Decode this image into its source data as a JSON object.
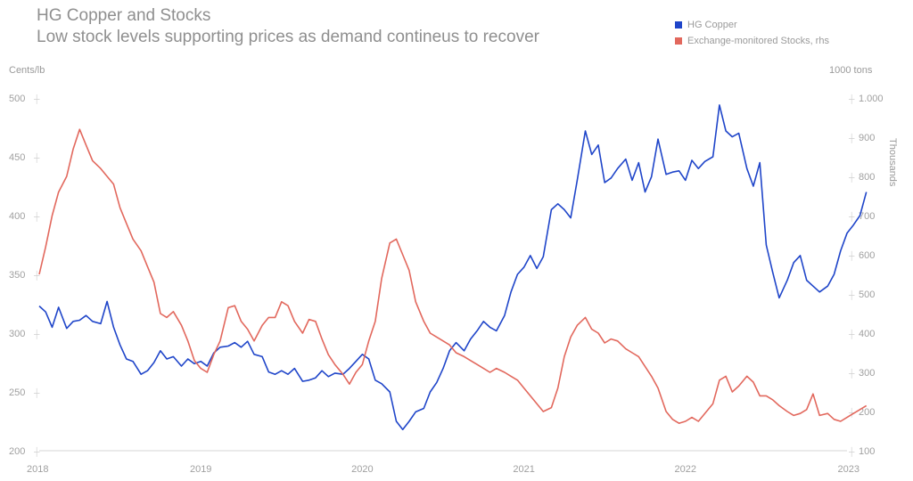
{
  "title": "HG Copper and Stocks",
  "subtitle": "Low stock levels supporting prices as demand contineus to recover",
  "left_unit": "Cents/lb",
  "right_unit": "1000 tons",
  "right_axis_label": "Thousands",
  "legend": [
    {
      "label": "HG Copper",
      "color": "#1f45c9"
    },
    {
      "label": "Exchange-monitored Stocks, rhs",
      "color": "#e2685d"
    }
  ],
  "chart_data": {
    "type": "line",
    "title": "HG Copper and Stocks",
    "subtitle": "Low stock levels supporting prices as demand contineus to recover",
    "x_ticks": [
      "2018",
      "2019",
      "2020",
      "2021",
      "2022",
      "2023"
    ],
    "xlim": [
      2018.0,
      2023.0
    ],
    "y_left": {
      "label": "Cents/lb",
      "ticks": [
        200,
        250,
        300,
        350,
        400,
        450,
        500
      ],
      "ylim": [
        200,
        500
      ]
    },
    "y_right": {
      "label": "1000 tons",
      "axis_title": "Thousands",
      "ticks": [
        "100",
        "200",
        "300",
        "400",
        "500",
        "600",
        "700",
        "800",
        "900",
        "1.000"
      ],
      "tick_values": [
        100,
        200,
        300,
        400,
        500,
        600,
        700,
        800,
        900,
        1000
      ],
      "ylim": [
        100,
        1000
      ]
    },
    "grid": false,
    "legend_position": "top-right",
    "series": [
      {
        "name": "HG Copper",
        "axis": "left",
        "color": "#1f45c9",
        "points": [
          [
            2018.0,
            323
          ],
          [
            2018.04,
            318
          ],
          [
            2018.08,
            305
          ],
          [
            2018.12,
            322
          ],
          [
            2018.17,
            304
          ],
          [
            2018.21,
            310
          ],
          [
            2018.25,
            311
          ],
          [
            2018.29,
            315
          ],
          [
            2018.33,
            310
          ],
          [
            2018.38,
            308
          ],
          [
            2018.42,
            327
          ],
          [
            2018.46,
            305
          ],
          [
            2018.5,
            290
          ],
          [
            2018.54,
            278
          ],
          [
            2018.58,
            276
          ],
          [
            2018.63,
            265
          ],
          [
            2018.67,
            268
          ],
          [
            2018.71,
            275
          ],
          [
            2018.75,
            285
          ],
          [
            2018.79,
            278
          ],
          [
            2018.83,
            280
          ],
          [
            2018.88,
            272
          ],
          [
            2018.92,
            278
          ],
          [
            2018.96,
            274
          ],
          [
            2019.0,
            276
          ],
          [
            2019.04,
            272
          ],
          [
            2019.08,
            283
          ],
          [
            2019.12,
            288
          ],
          [
            2019.17,
            289
          ],
          [
            2019.21,
            292
          ],
          [
            2019.25,
            288
          ],
          [
            2019.29,
            293
          ],
          [
            2019.33,
            282
          ],
          [
            2019.38,
            280
          ],
          [
            2019.42,
            267
          ],
          [
            2019.46,
            265
          ],
          [
            2019.5,
            268
          ],
          [
            2019.54,
            265
          ],
          [
            2019.58,
            270
          ],
          [
            2019.63,
            259
          ],
          [
            2019.67,
            260
          ],
          [
            2019.71,
            262
          ],
          [
            2019.75,
            268
          ],
          [
            2019.79,
            263
          ],
          [
            2019.83,
            266
          ],
          [
            2019.88,
            265
          ],
          [
            2019.92,
            270
          ],
          [
            2019.96,
            276
          ],
          [
            2020.0,
            282
          ],
          [
            2020.04,
            278
          ],
          [
            2020.08,
            260
          ],
          [
            2020.12,
            257
          ],
          [
            2020.17,
            250
          ],
          [
            2020.21,
            225
          ],
          [
            2020.25,
            218
          ],
          [
            2020.29,
            225
          ],
          [
            2020.33,
            233
          ],
          [
            2020.38,
            236
          ],
          [
            2020.42,
            250
          ],
          [
            2020.46,
            258
          ],
          [
            2020.5,
            270
          ],
          [
            2020.54,
            285
          ],
          [
            2020.58,
            292
          ],
          [
            2020.63,
            285
          ],
          [
            2020.67,
            295
          ],
          [
            2020.71,
            302
          ],
          [
            2020.75,
            310
          ],
          [
            2020.79,
            305
          ],
          [
            2020.83,
            302
          ],
          [
            2020.88,
            315
          ],
          [
            2020.92,
            335
          ],
          [
            2020.96,
            350
          ],
          [
            2021.0,
            356
          ],
          [
            2021.04,
            366
          ],
          [
            2021.08,
            355
          ],
          [
            2021.12,
            365
          ],
          [
            2021.17,
            405
          ],
          [
            2021.21,
            410
          ],
          [
            2021.25,
            405
          ],
          [
            2021.29,
            398
          ],
          [
            2021.33,
            430
          ],
          [
            2021.38,
            472
          ],
          [
            2021.42,
            452
          ],
          [
            2021.46,
            460
          ],
          [
            2021.5,
            428
          ],
          [
            2021.54,
            432
          ],
          [
            2021.58,
            440
          ],
          [
            2021.63,
            448
          ],
          [
            2021.67,
            430
          ],
          [
            2021.71,
            445
          ],
          [
            2021.75,
            420
          ],
          [
            2021.79,
            433
          ],
          [
            2021.83,
            465
          ],
          [
            2021.88,
            435
          ],
          [
            2021.92,
            437
          ],
          [
            2021.96,
            438
          ],
          [
            2022.0,
            430
          ],
          [
            2022.04,
            447
          ],
          [
            2022.08,
            440
          ],
          [
            2022.12,
            446
          ],
          [
            2022.17,
            450
          ],
          [
            2022.21,
            494
          ],
          [
            2022.25,
            472
          ],
          [
            2022.29,
            467
          ],
          [
            2022.33,
            470
          ],
          [
            2022.38,
            440
          ],
          [
            2022.42,
            425
          ],
          [
            2022.46,
            445
          ],
          [
            2022.5,
            375
          ],
          [
            2022.54,
            352
          ],
          [
            2022.58,
            330
          ],
          [
            2022.63,
            345
          ],
          [
            2022.67,
            360
          ],
          [
            2022.71,
            366
          ],
          [
            2022.75,
            345
          ],
          [
            2022.79,
            340
          ],
          [
            2022.83,
            335
          ],
          [
            2022.88,
            340
          ],
          [
            2022.92,
            350
          ],
          [
            2022.96,
            370
          ],
          [
            2023.0,
            385
          ],
          [
            2023.04,
            392
          ],
          [
            2023.08,
            400
          ],
          [
            2023.12,
            420
          ]
        ]
      },
      {
        "name": "Exchange-monitored Stocks, rhs",
        "axis": "right",
        "color": "#e2685d",
        "points": [
          [
            2018.0,
            550
          ],
          [
            2018.04,
            620
          ],
          [
            2018.08,
            700
          ],
          [
            2018.12,
            760
          ],
          [
            2018.17,
            800
          ],
          [
            2018.21,
            870
          ],
          [
            2018.25,
            920
          ],
          [
            2018.29,
            880
          ],
          [
            2018.33,
            840
          ],
          [
            2018.38,
            820
          ],
          [
            2018.42,
            800
          ],
          [
            2018.46,
            780
          ],
          [
            2018.5,
            720
          ],
          [
            2018.54,
            680
          ],
          [
            2018.58,
            640
          ],
          [
            2018.63,
            610
          ],
          [
            2018.67,
            570
          ],
          [
            2018.71,
            530
          ],
          [
            2018.75,
            450
          ],
          [
            2018.79,
            440
          ],
          [
            2018.83,
            455
          ],
          [
            2018.88,
            420
          ],
          [
            2018.92,
            380
          ],
          [
            2018.96,
            330
          ],
          [
            2019.0,
            310
          ],
          [
            2019.04,
            300
          ],
          [
            2019.08,
            345
          ],
          [
            2019.12,
            380
          ],
          [
            2019.17,
            465
          ],
          [
            2019.21,
            470
          ],
          [
            2019.25,
            430
          ],
          [
            2019.29,
            410
          ],
          [
            2019.33,
            380
          ],
          [
            2019.38,
            420
          ],
          [
            2019.42,
            440
          ],
          [
            2019.46,
            440
          ],
          [
            2019.5,
            480
          ],
          [
            2019.54,
            470
          ],
          [
            2019.58,
            430
          ],
          [
            2019.63,
            400
          ],
          [
            2019.67,
            435
          ],
          [
            2019.71,
            430
          ],
          [
            2019.75,
            385
          ],
          [
            2019.79,
            345
          ],
          [
            2019.83,
            320
          ],
          [
            2019.88,
            295
          ],
          [
            2019.92,
            270
          ],
          [
            2019.96,
            300
          ],
          [
            2020.0,
            320
          ],
          [
            2020.04,
            380
          ],
          [
            2020.08,
            430
          ],
          [
            2020.12,
            540
          ],
          [
            2020.17,
            630
          ],
          [
            2020.21,
            640
          ],
          [
            2020.25,
            600
          ],
          [
            2020.29,
            560
          ],
          [
            2020.33,
            480
          ],
          [
            2020.38,
            430
          ],
          [
            2020.42,
            400
          ],
          [
            2020.46,
            390
          ],
          [
            2020.5,
            380
          ],
          [
            2020.54,
            370
          ],
          [
            2020.58,
            350
          ],
          [
            2020.63,
            340
          ],
          [
            2020.67,
            330
          ],
          [
            2020.71,
            320
          ],
          [
            2020.75,
            310
          ],
          [
            2020.79,
            300
          ],
          [
            2020.83,
            310
          ],
          [
            2020.88,
            300
          ],
          [
            2020.92,
            290
          ],
          [
            2020.96,
            280
          ],
          [
            2021.0,
            260
          ],
          [
            2021.04,
            240
          ],
          [
            2021.08,
            220
          ],
          [
            2021.12,
            200
          ],
          [
            2021.17,
            210
          ],
          [
            2021.21,
            260
          ],
          [
            2021.25,
            340
          ],
          [
            2021.29,
            390
          ],
          [
            2021.33,
            420
          ],
          [
            2021.38,
            440
          ],
          [
            2021.42,
            410
          ],
          [
            2021.46,
            400
          ],
          [
            2021.5,
            375
          ],
          [
            2021.54,
            385
          ],
          [
            2021.58,
            380
          ],
          [
            2021.63,
            360
          ],
          [
            2021.67,
            350
          ],
          [
            2021.71,
            340
          ],
          [
            2021.75,
            315
          ],
          [
            2021.79,
            290
          ],
          [
            2021.83,
            260
          ],
          [
            2021.88,
            200
          ],
          [
            2021.92,
            180
          ],
          [
            2021.96,
            170
          ],
          [
            2022.0,
            175
          ],
          [
            2022.04,
            185
          ],
          [
            2022.08,
            175
          ],
          [
            2022.12,
            195
          ],
          [
            2022.17,
            220
          ],
          [
            2022.21,
            280
          ],
          [
            2022.25,
            290
          ],
          [
            2022.29,
            250
          ],
          [
            2022.33,
            265
          ],
          [
            2022.38,
            290
          ],
          [
            2022.42,
            275
          ],
          [
            2022.46,
            240
          ],
          [
            2022.5,
            240
          ],
          [
            2022.54,
            230
          ],
          [
            2022.58,
            215
          ],
          [
            2022.63,
            200
          ],
          [
            2022.67,
            190
          ],
          [
            2022.71,
            195
          ],
          [
            2022.75,
            205
          ],
          [
            2022.79,
            245
          ],
          [
            2022.83,
            190
          ],
          [
            2022.88,
            195
          ],
          [
            2022.92,
            180
          ],
          [
            2022.96,
            175
          ],
          [
            2023.0,
            185
          ],
          [
            2023.04,
            195
          ],
          [
            2023.08,
            205
          ],
          [
            2023.12,
            215
          ]
        ]
      }
    ]
  }
}
